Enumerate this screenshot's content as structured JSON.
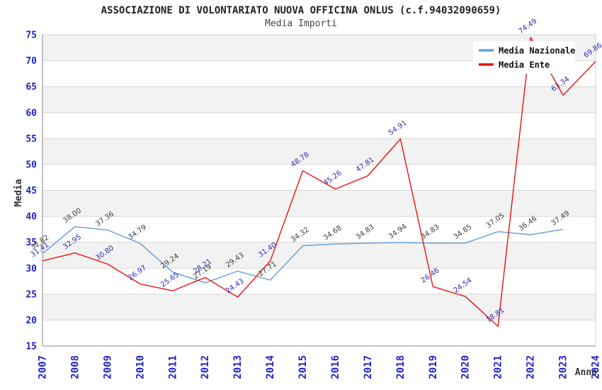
{
  "page": {
    "title": "ASSOCIAZIONE DI VOLONTARIATO NUOVA OFFICINA ONLUS (c.f.94032090659)",
    "subtitle": "Media Importi"
  },
  "chart_data": {
    "type": "line",
    "title": "ASSOCIAZIONE DI VOLONTARIATO NUOVA OFFICINA ONLUS (c.f.94032090659)",
    "subtitle": "Media Importi",
    "xlabel": "Anno",
    "ylabel": "Media",
    "ylim": [
      15,
      75
    ],
    "ytick_step": 5,
    "grid": true,
    "alternating_bands": true,
    "legend_position": "top-right",
    "categories": [
      "2007",
      "2008",
      "2009",
      "2010",
      "2011",
      "2012",
      "2013",
      "2014",
      "2015",
      "2016",
      "2017",
      "2018",
      "2019",
      "2020",
      "2021",
      "2022",
      "2023",
      "2024"
    ],
    "series": [
      {
        "name": "Media Nazionale",
        "color": "#64a0d8",
        "label_color": "#3c3c3c",
        "values": [
          32.82,
          38.0,
          37.36,
          34.79,
          29.24,
          27.19,
          29.43,
          27.71,
          34.32,
          34.68,
          34.83,
          34.94,
          34.83,
          34.85,
          37.05,
          36.46,
          37.49,
          null
        ],
        "labels": [
          "32.82",
          "38.00",
          "37.36",
          "34.79",
          "29.24",
          "27.19",
          "29.43",
          "27.71",
          "34.32",
          "34.68",
          "34.83",
          "34.94",
          "34.83",
          "34.85",
          "37.05",
          "36.46",
          "37.49",
          ""
        ]
      },
      {
        "name": "Media Ente",
        "color": "#ee1111",
        "label_color": "#2a2ab8",
        "values": [
          31.41,
          32.95,
          30.8,
          26.97,
          25.65,
          28.21,
          24.43,
          31.4,
          48.78,
          45.26,
          47.81,
          54.91,
          26.46,
          24.54,
          18.81,
          74.49,
          63.34,
          69.86
        ],
        "labels": [
          "31.41",
          "32.95",
          "30.80",
          "26.97",
          "25.65",
          "28.21",
          "24.43",
          "31.40",
          "48.78",
          "45.26",
          "47.81",
          "54.91",
          "26.46",
          "24.54",
          "18.81",
          "74.49",
          "63.34",
          "69.86"
        ]
      }
    ],
    "colors": {
      "band_gray": "#f2f2f2",
      "gridline": "#d8d8d8",
      "axis": "#888888",
      "plot_right_border": "#cccccc",
      "tick_label": "#2222cc",
      "axis_title": "#333333",
      "legend_bg": "#ffffff",
      "legend_text": "#111111"
    },
    "yticks": [
      15,
      20,
      25,
      30,
      35,
      40,
      45,
      50,
      55,
      60,
      65,
      70,
      75
    ]
  },
  "legend": {
    "items": [
      {
        "label": "Media Nazionale"
      },
      {
        "label": "Media Ente"
      }
    ]
  }
}
